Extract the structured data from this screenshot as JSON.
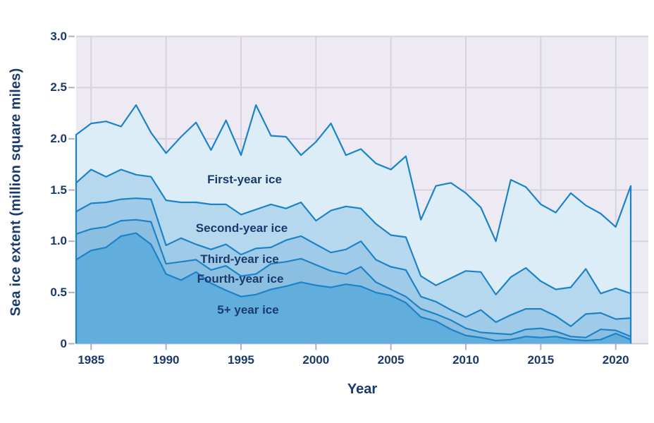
{
  "figure": {
    "y_axis_title": "Sea ice extent (million square miles)",
    "x_axis_title": "Year"
  },
  "annotations": {
    "first_year": "First-year ice",
    "second_year": "Second-year ice",
    "third_year": "Third-year ice",
    "fourth_year": "Fourth-year ice",
    "five_plus_year": "5+ year ice"
  },
  "chart_data": {
    "type": "area",
    "stacked": true,
    "title": "",
    "xlabel": "Year",
    "ylabel": "Sea ice extent (million square miles)",
    "xlim": [
      1984,
      2021
    ],
    "ylim": [
      0,
      3.0
    ],
    "grid": true,
    "legend_position": "labels-inside-bands",
    "x": [
      1984,
      1985,
      1986,
      1987,
      1988,
      1989,
      1990,
      1991,
      1992,
      1993,
      1994,
      1995,
      1996,
      1997,
      1998,
      1999,
      2000,
      2001,
      2002,
      2003,
      2004,
      2005,
      2006,
      2007,
      2008,
      2009,
      2010,
      2011,
      2012,
      2013,
      2014,
      2015,
      2016,
      2017,
      2018,
      2019,
      2020,
      2021
    ],
    "x_ticks": [
      1985,
      1990,
      1995,
      2000,
      2005,
      2010,
      2015,
      2020
    ],
    "y_ticks": [
      "3.0",
      "2.5",
      "2.0",
      "1.5",
      "1.0",
      "0.5",
      "0"
    ],
    "y_tick_values": [
      3.0,
      2.5,
      2.0,
      1.5,
      1.0,
      0.5,
      0
    ],
    "series": [
      {
        "name": "5+ year ice",
        "color": "#61aedd",
        "values": [
          0.82,
          0.91,
          0.94,
          1.05,
          1.08,
          0.97,
          0.68,
          0.62,
          0.7,
          0.59,
          0.52,
          0.46,
          0.48,
          0.53,
          0.56,
          0.6,
          0.57,
          0.55,
          0.58,
          0.56,
          0.5,
          0.47,
          0.4,
          0.26,
          0.22,
          0.14,
          0.08,
          0.06,
          0.03,
          0.04,
          0.07,
          0.06,
          0.07,
          0.04,
          0.03,
          0.04,
          0.1,
          0.04
        ]
      },
      {
        "name": "Fourth-year ice",
        "color": "#8abfe2",
        "values": [
          0.25,
          0.21,
          0.2,
          0.15,
          0.13,
          0.22,
          0.1,
          0.18,
          0.12,
          0.13,
          0.24,
          0.2,
          0.2,
          0.25,
          0.24,
          0.23,
          0.2,
          0.16,
          0.1,
          0.19,
          0.1,
          0.06,
          0.06,
          0.08,
          0.07,
          0.09,
          0.07,
          0.05,
          0.07,
          0.05,
          0.07,
          0.09,
          0.05,
          0.03,
          0.03,
          0.1,
          0.03,
          0.03
        ]
      },
      {
        "name": "Third-year ice",
        "color": "#a0cbe8",
        "values": [
          0.22,
          0.25,
          0.24,
          0.21,
          0.21,
          0.22,
          0.18,
          0.23,
          0.15,
          0.2,
          0.21,
          0.21,
          0.25,
          0.16,
          0.21,
          0.22,
          0.2,
          0.18,
          0.24,
          0.25,
          0.22,
          0.22,
          0.26,
          0.12,
          0.12,
          0.1,
          0.11,
          0.22,
          0.11,
          0.19,
          0.2,
          0.19,
          0.15,
          0.1,
          0.23,
          0.16,
          0.11,
          0.18
        ]
      },
      {
        "name": "Second-year ice",
        "color": "#b6d8ee",
        "values": [
          0.28,
          0.33,
          0.25,
          0.29,
          0.23,
          0.22,
          0.44,
          0.35,
          0.41,
          0.44,
          0.39,
          0.39,
          0.38,
          0.42,
          0.31,
          0.33,
          0.23,
          0.41,
          0.42,
          0.32,
          0.35,
          0.31,
          0.32,
          0.2,
          0.16,
          0.31,
          0.45,
          0.37,
          0.27,
          0.37,
          0.4,
          0.27,
          0.26,
          0.38,
          0.44,
          0.19,
          0.3,
          0.24
        ]
      },
      {
        "name": "First-year ice",
        "color": "#dcedf8",
        "values": [
          0.47,
          0.45,
          0.54,
          0.42,
          0.68,
          0.43,
          0.46,
          0.64,
          0.78,
          0.53,
          0.82,
          0.58,
          1.02,
          0.67,
          0.7,
          0.46,
          0.77,
          0.85,
          0.5,
          0.58,
          0.59,
          0.64,
          0.79,
          0.55,
          0.97,
          0.93,
          0.76,
          0.63,
          0.52,
          0.95,
          0.79,
          0.75,
          0.75,
          0.92,
          0.62,
          0.78,
          0.6,
          1.05
        ]
      }
    ],
    "colors": {
      "plot_background": "#edeaf4",
      "gridline": "#d7d2e0",
      "axis_line": "#cdc8d8",
      "tick_mark": "#b4aec2",
      "boundary_line": "#1d83c8",
      "text": "#1a3a6c"
    }
  }
}
